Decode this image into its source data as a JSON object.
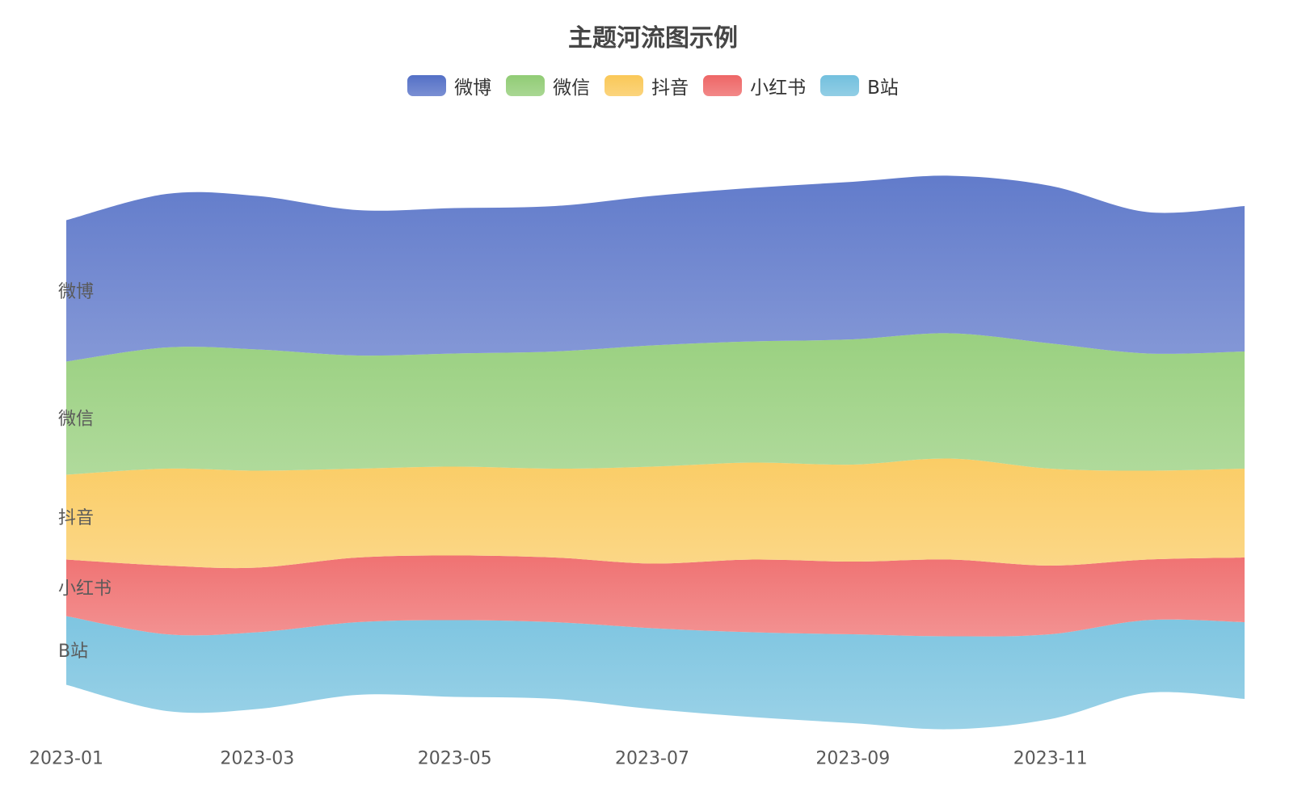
{
  "chart_data": {
    "type": "area",
    "title": "主题河流图示例",
    "legend_position": "top-center",
    "x": [
      "2023-01-01",
      "2023-02-01",
      "2023-03-01",
      "2023-04-01",
      "2023-05-01",
      "2023-06-01",
      "2023-07-01",
      "2023-08-01",
      "2023-09-01",
      "2023-10-01",
      "2023-11-01",
      "2023-12-01",
      "2023-12-31"
    ],
    "x_tick_labels": [
      "2023-01",
      "2023-03",
      "2023-05",
      "2023-07",
      "2023-09",
      "2023-11"
    ],
    "series": [
      {
        "name": "B站",
        "color": "#73c0de",
        "values": [
          8.5,
          9.5,
          9.5,
          9.0,
          9.5,
          9.5,
          10.0,
          10.5,
          11.0,
          11.5,
          10.5,
          9.0,
          9.5
        ]
      },
      {
        "name": "小红书",
        "color": "#ee6666",
        "values": [
          7.0,
          8.5,
          8.0,
          8.0,
          8.0,
          8.0,
          8.0,
          9.0,
          9.0,
          9.5,
          8.5,
          7.5,
          8.0
        ]
      },
      {
        "name": "抖音",
        "color": "#fac858",
        "values": [
          10.5,
          12.0,
          12.0,
          11.0,
          11.0,
          11.0,
          12.0,
          12.0,
          12.0,
          12.5,
          12.0,
          11.0,
          11.0
        ]
      },
      {
        "name": "微信",
        "color": "#91cc75",
        "values": [
          14.0,
          15.0,
          15.0,
          14.0,
          14.0,
          14.5,
          15.0,
          15.0,
          15.5,
          15.5,
          15.5,
          14.5,
          14.5
        ]
      },
      {
        "name": "微博",
        "color": "#5470c6",
        "values": [
          17.5,
          19.0,
          19.0,
          18.0,
          18.0,
          18.0,
          18.5,
          19.0,
          19.5,
          19.5,
          19.5,
          17.5,
          18.0
        ]
      }
    ]
  }
}
